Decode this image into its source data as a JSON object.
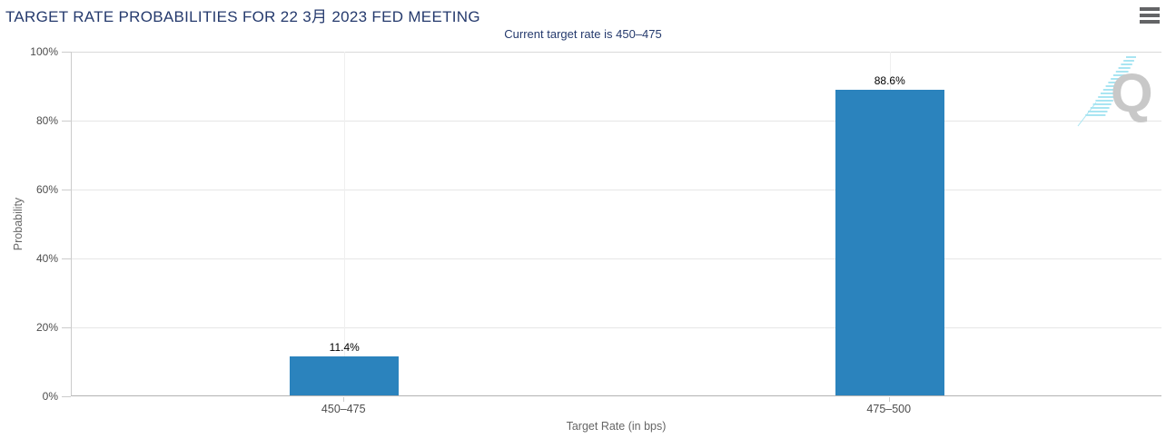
{
  "header": {
    "menu_icon": "hamburger-icon"
  },
  "chart_data": {
    "type": "bar",
    "title": "TARGET RATE PROBABILITIES FOR 22 3月 2023 FED MEETING",
    "subtitle": "Current target rate is 450–475",
    "categories": [
      "450–475",
      "475–500"
    ],
    "values": [
      11.4,
      88.6
    ],
    "value_labels": [
      "11.4%",
      "88.6%"
    ],
    "xlabel": "Target Rate (in bps)",
    "ylabel": "Probability",
    "ylim": [
      0,
      100
    ],
    "yticks": [
      0,
      20,
      40,
      60,
      80,
      100
    ],
    "ytick_labels": [
      "0%",
      "20%",
      "40%",
      "60%",
      "80%",
      "100%"
    ],
    "grid": true,
    "legend_position": "none",
    "bar_color": "#2b83bd"
  },
  "watermark": {
    "letter": "Q",
    "q_color": "#c8c8c8",
    "dash_color": "#a9e5f2"
  },
  "colors": {
    "title_text": "#253a6d",
    "subtitle_text": "#253a6d",
    "axis_text": "#4d4d4d",
    "axis_title_text": "#666666",
    "value_label_text": "#000000",
    "gridline": "#e6e6e6",
    "axis_line": "#b3b3b3"
  }
}
